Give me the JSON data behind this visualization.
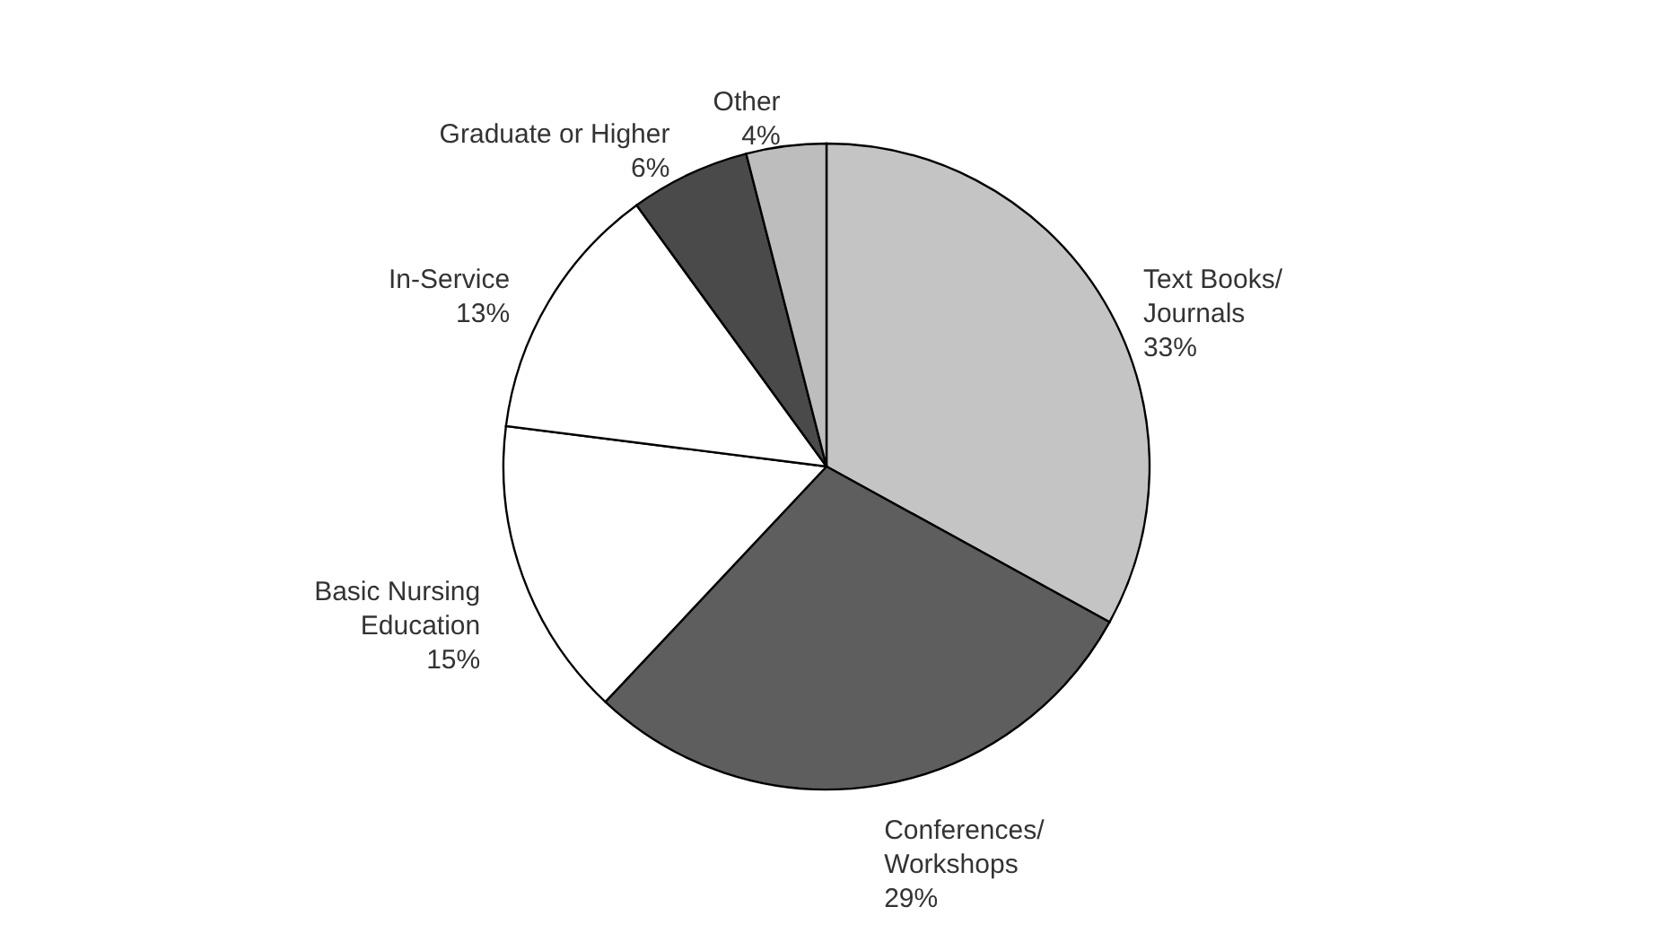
{
  "chart_data": {
    "type": "pie",
    "categories": [
      "Text Books/Journals",
      "Conferences/Workshops",
      "Basic Nursing Education",
      "In-Service",
      "Graduate or Higher",
      "Other"
    ],
    "values": [
      33,
      29,
      15,
      13,
      6,
      4
    ],
    "value_labels": [
      "33%",
      "29%",
      "15%",
      "13%",
      "6%",
      "4%"
    ],
    "colors": [
      "#c4c4c4",
      "#5e5e5e",
      "#ffffff",
      "#ffffff",
      "#4a4a4a",
      "#bdbdbd"
    ],
    "legend": false
  }
}
